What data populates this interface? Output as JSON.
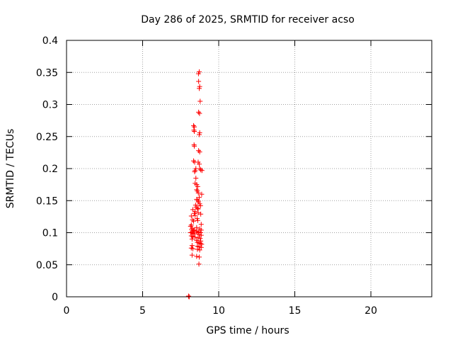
{
  "chart_data": {
    "type": "scatter",
    "title": "Day 286 of 2025, SRMTID for receiver acso",
    "xlabel": "GPS time / hours",
    "ylabel": "SRMTID / TECUs",
    "xlim": [
      0,
      24
    ],
    "ylim": [
      0,
      0.4
    ],
    "xticks": [
      0,
      5,
      10,
      15,
      20
    ],
    "xtick_labels": [
      "0",
      "5",
      "10",
      "15",
      "20"
    ],
    "yticks": [
      0,
      0.05,
      0.1,
      0.15,
      0.2,
      0.25,
      0.3,
      0.35,
      0.4
    ],
    "ytick_labels": [
      "0",
      "0.05",
      "0.1",
      "0.15",
      "0.2",
      "0.25",
      "0.3",
      "0.35",
      "0.4"
    ],
    "grid": true,
    "marker": "plus",
    "marker_color": "#ff0000",
    "series": [
      {
        "x": [
          8.72,
          8.67,
          8.68,
          8.75,
          8.72,
          8.78,
          8.68,
          8.74,
          8.35,
          8.4,
          8.37,
          8.4,
          8.75,
          8.72,
          8.38,
          8.4,
          8.68,
          8.75,
          8.35,
          8.42,
          8.65,
          8.72,
          8.75,
          8.82,
          8.45,
          8.9,
          8.42,
          8.5,
          8.5,
          8.45,
          8.55,
          8.62,
          8.88,
          8.55,
          8.6,
          8.66,
          8.72,
          8.55,
          8.62,
          8.68,
          8.48,
          8.75,
          8.8,
          8.52,
          8.6,
          8.65,
          8.3,
          8.45,
          8.4,
          8.65,
          8.82,
          8.2,
          8.45,
          8.58,
          8.28,
          8.35,
          8.62,
          8.85,
          8.15,
          8.55,
          8.2,
          8.28,
          8.75,
          8.85,
          8.22,
          8.35,
          8.42,
          8.55,
          8.68,
          8.82,
          8.15,
          8.25,
          8.3,
          8.38,
          8.6,
          8.72,
          8.85,
          8.2,
          8.3,
          8.45,
          8.65,
          8.78,
          8.25,
          8.55,
          8.82,
          8.6,
          8.7,
          8.8,
          8.88,
          8.25,
          8.6,
          8.7,
          8.85,
          8.2,
          8.3,
          8.6,
          8.75,
          8.25,
          8.55,
          8.72,
          8.7,
          8.02,
          8.05,
          8.02,
          8.06
        ],
        "y": [
          0.351,
          0.348,
          0.336,
          0.328,
          0.325,
          0.305,
          0.288,
          0.286,
          0.267,
          0.265,
          0.26,
          0.258,
          0.256,
          0.253,
          0.237,
          0.235,
          0.228,
          0.226,
          0.212,
          0.21,
          0.21,
          0.207,
          0.2,
          0.198,
          0.197,
          0.197,
          0.195,
          0.2,
          0.185,
          0.177,
          0.175,
          0.172,
          0.16,
          0.167,
          0.165,
          0.162,
          0.155,
          0.152,
          0.15,
          0.148,
          0.143,
          0.145,
          0.142,
          0.14,
          0.138,
          0.137,
          0.136,
          0.133,
          0.13,
          0.131,
          0.129,
          0.126,
          0.127,
          0.122,
          0.12,
          0.118,
          0.119,
          0.113,
          0.11,
          0.108,
          0.112,
          0.107,
          0.106,
          0.104,
          0.105,
          0.103,
          0.104,
          0.102,
          0.101,
          0.1,
          0.1,
          0.101,
          0.099,
          0.098,
          0.1,
          0.097,
          0.096,
          0.095,
          0.094,
          0.093,
          0.092,
          0.091,
          0.09,
          0.088,
          0.087,
          0.085,
          0.084,
          0.083,
          0.082,
          0.08,
          0.079,
          0.078,
          0.077,
          0.076,
          0.075,
          0.074,
          0.073,
          0.065,
          0.063,
          0.062,
          0.051,
          0.001,
          0.0,
          0.001,
          0.0
        ]
      }
    ]
  }
}
